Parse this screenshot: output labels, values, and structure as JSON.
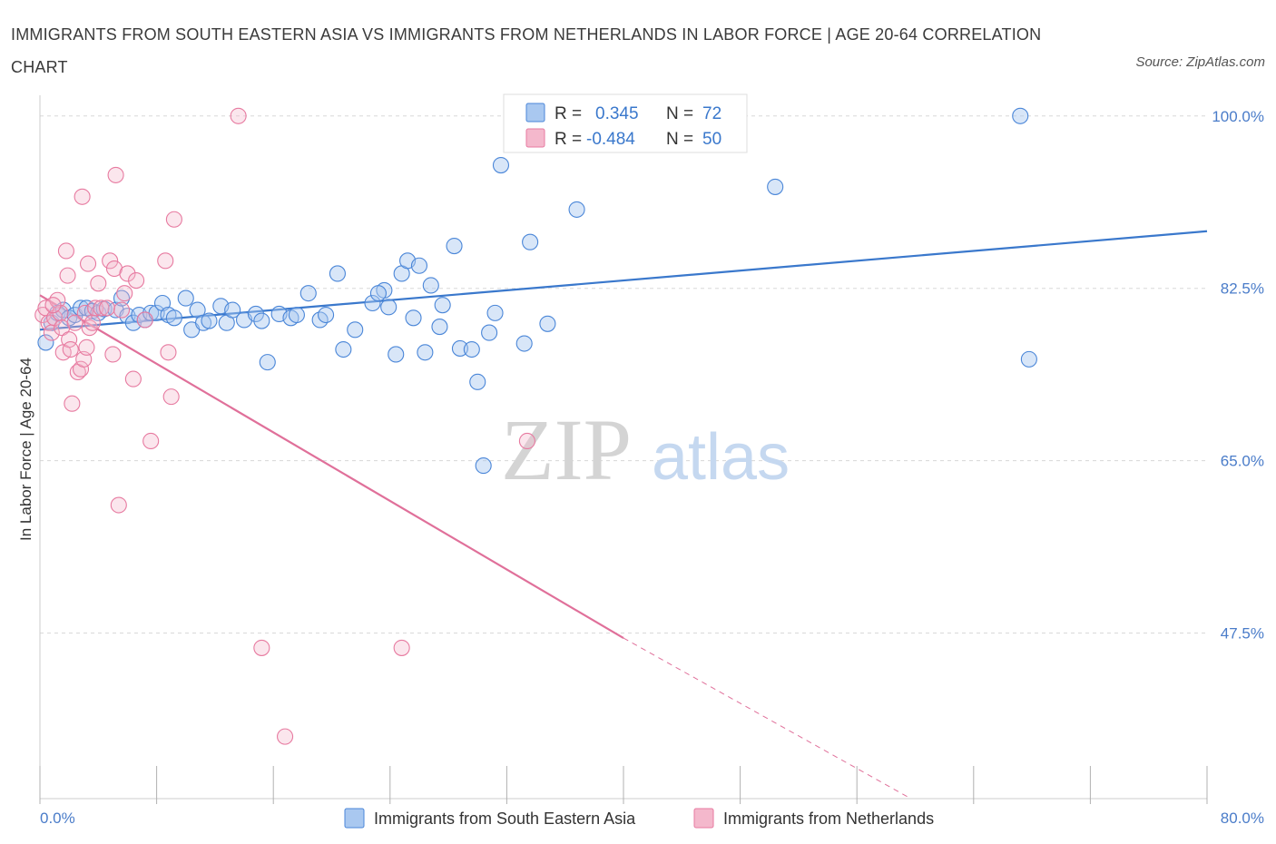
{
  "header": {
    "title": "IMMIGRANTS FROM SOUTH EASTERN ASIA VS IMMIGRANTS FROM NETHERLANDS IN LABOR FORCE | AGE 20-64 CORRELATION CHART",
    "source": "Source: ZipAtlas.com"
  },
  "colors": {
    "blue": "#4a86d8",
    "blue_fill": "#a9c8f0",
    "blue_line": "#3a78cc",
    "pink": "#e77aa0",
    "pink_fill": "#f4b8cc",
    "pink_line": "#e0709a",
    "tick_text": "#4a7cc9",
    "grid": "#d8d8d8"
  },
  "watermark": {
    "zip": "ZIP",
    "atlas": "atlas"
  },
  "stats": {
    "blue": {
      "r_label": "R =",
      "r_value": "0.345",
      "n_label": "N =",
      "n_value": "72"
    },
    "pink": {
      "r_label": "R =",
      "r_value": "-0.484",
      "n_label": "N =",
      "n_value": "50"
    }
  },
  "chart_data": {
    "type": "scatter",
    "title": "IMMIGRANTS FROM SOUTH EASTERN ASIA VS IMMIGRANTS FROM NETHERLANDS IN LABOR FORCE | AGE 20-64 CORRELATION CHART",
    "xlabel": "",
    "ylabel": "In Labor Force | Age 20-64",
    "xlim": [
      0,
      80
    ],
    "ylim": [
      30.7,
      100.9
    ],
    "x_tick_labels": [
      "0.0%",
      "80.0%"
    ],
    "y_ticks": [
      47.5,
      65.0,
      82.5,
      100.0
    ],
    "y_tick_labels": [
      "47.5%",
      "65.0%",
      "82.5%",
      "100.0%"
    ],
    "grid": true,
    "legend_position": "bottom-center",
    "series": [
      {
        "name": "Immigrants from South Eastern Asia",
        "color": "#4a86d8",
        "r": 0.345,
        "n": 72,
        "trend": {
          "x": [
            0,
            80
          ],
          "y": [
            78.3,
            88.3
          ]
        },
        "points": [
          [
            0.4,
            77.0
          ],
          [
            0.8,
            79.0
          ],
          [
            1.2,
            80.0
          ],
          [
            1.6,
            80.3
          ],
          [
            2.0,
            79.5
          ],
          [
            2.4,
            79.8
          ],
          [
            2.8,
            80.5
          ],
          [
            3.2,
            80.5
          ],
          [
            3.6,
            80.2
          ],
          [
            4.0,
            80.0
          ],
          [
            4.4,
            80.4
          ],
          [
            5.2,
            80.3
          ],
          [
            5.6,
            81.5
          ],
          [
            6.0,
            79.7
          ],
          [
            6.4,
            79.0
          ],
          [
            6.8,
            79.8
          ],
          [
            7.2,
            79.3
          ],
          [
            7.6,
            80.0
          ],
          [
            8.0,
            80.0
          ],
          [
            8.4,
            81.0
          ],
          [
            8.8,
            79.8
          ],
          [
            9.2,
            79.5
          ],
          [
            10.0,
            81.5
          ],
          [
            10.4,
            78.3
          ],
          [
            10.8,
            80.3
          ],
          [
            11.2,
            79.0
          ],
          [
            11.6,
            79.2
          ],
          [
            12.4,
            80.7
          ],
          [
            12.8,
            79.0
          ],
          [
            13.2,
            80.3
          ],
          [
            14.0,
            79.3
          ],
          [
            14.8,
            79.9
          ],
          [
            15.2,
            79.2
          ],
          [
            15.6,
            75.0
          ],
          [
            16.4,
            79.9
          ],
          [
            17.2,
            79.5
          ],
          [
            17.6,
            79.8
          ],
          [
            18.4,
            82.0
          ],
          [
            19.2,
            79.3
          ],
          [
            19.6,
            79.8
          ],
          [
            20.4,
            84.0
          ],
          [
            20.8,
            76.3
          ],
          [
            21.6,
            78.3
          ],
          [
            22.8,
            81.0
          ],
          [
            23.6,
            82.3
          ],
          [
            23.2,
            82.0
          ],
          [
            23.9,
            80.6
          ],
          [
            24.4,
            75.8
          ],
          [
            24.8,
            84.0
          ],
          [
            25.2,
            85.3
          ],
          [
            25.6,
            79.5
          ],
          [
            26.0,
            84.8
          ],
          [
            26.4,
            76.0
          ],
          [
            26.8,
            82.8
          ],
          [
            27.4,
            78.6
          ],
          [
            27.6,
            80.8
          ],
          [
            28.4,
            86.8
          ],
          [
            28.8,
            76.4
          ],
          [
            29.6,
            76.3
          ],
          [
            30.0,
            73.0
          ],
          [
            30.4,
            64.5
          ],
          [
            30.8,
            78.0
          ],
          [
            31.2,
            80.0
          ],
          [
            31.6,
            95.0
          ],
          [
            33.2,
            76.9
          ],
          [
            33.6,
            87.2
          ],
          [
            34.8,
            78.9
          ],
          [
            36.8,
            90.5
          ],
          [
            50.4,
            92.8
          ],
          [
            67.2,
            100.0
          ],
          [
            67.8,
            75.3
          ],
          [
            43.4,
            100.0
          ]
        ]
      },
      {
        "name": "Immigrants from Netherlands",
        "color": "#e77aa0",
        "r": -0.484,
        "n": 50,
        "trend": {
          "x": [
            0,
            40
          ],
          "y": [
            81.8,
            47.0
          ]
        },
        "trend_dashed": {
          "x": [
            40,
            59.7
          ],
          "y": [
            47.0,
            30.7
          ]
        },
        "points": [
          [
            0.2,
            79.8
          ],
          [
            0.4,
            80.5
          ],
          [
            0.6,
            79.0
          ],
          [
            0.8,
            78.0
          ],
          [
            1.0,
            79.5
          ],
          [
            1.2,
            81.3
          ],
          [
            1.4,
            80.0
          ],
          [
            1.5,
            78.5
          ],
          [
            1.6,
            76.0
          ],
          [
            1.8,
            86.3
          ],
          [
            1.9,
            83.8
          ],
          [
            2.0,
            77.3
          ],
          [
            2.1,
            76.3
          ],
          [
            2.2,
            70.8
          ],
          [
            2.4,
            79.0
          ],
          [
            2.6,
            74.0
          ],
          [
            2.8,
            74.3
          ],
          [
            2.9,
            91.8
          ],
          [
            3.0,
            75.3
          ],
          [
            3.1,
            80.0
          ],
          [
            3.2,
            76.5
          ],
          [
            3.3,
            85.0
          ],
          [
            3.4,
            78.5
          ],
          [
            3.6,
            79.0
          ],
          [
            3.8,
            80.5
          ],
          [
            4.0,
            83.0
          ],
          [
            4.2,
            80.5
          ],
          [
            4.6,
            80.5
          ],
          [
            4.8,
            85.3
          ],
          [
            5.0,
            75.8
          ],
          [
            5.1,
            84.5
          ],
          [
            5.2,
            94.0
          ],
          [
            5.4,
            60.5
          ],
          [
            5.6,
            80.3
          ],
          [
            5.8,
            82.0
          ],
          [
            6.0,
            84.0
          ],
          [
            6.4,
            73.3
          ],
          [
            6.6,
            83.3
          ],
          [
            7.2,
            79.3
          ],
          [
            7.6,
            67.0
          ],
          [
            8.8,
            76.0
          ],
          [
            8.6,
            85.3
          ],
          [
            9.0,
            71.5
          ],
          [
            9.2,
            89.5
          ],
          [
            13.6,
            100.0
          ],
          [
            15.2,
            46.0
          ],
          [
            16.8,
            37.0
          ],
          [
            24.8,
            46.0
          ],
          [
            33.4,
            67.0
          ],
          [
            0.9,
            80.8
          ]
        ]
      }
    ]
  },
  "legend": {
    "items": [
      {
        "label": "Immigrants from South Eastern Asia"
      },
      {
        "label": "Immigrants from Netherlands"
      }
    ]
  }
}
